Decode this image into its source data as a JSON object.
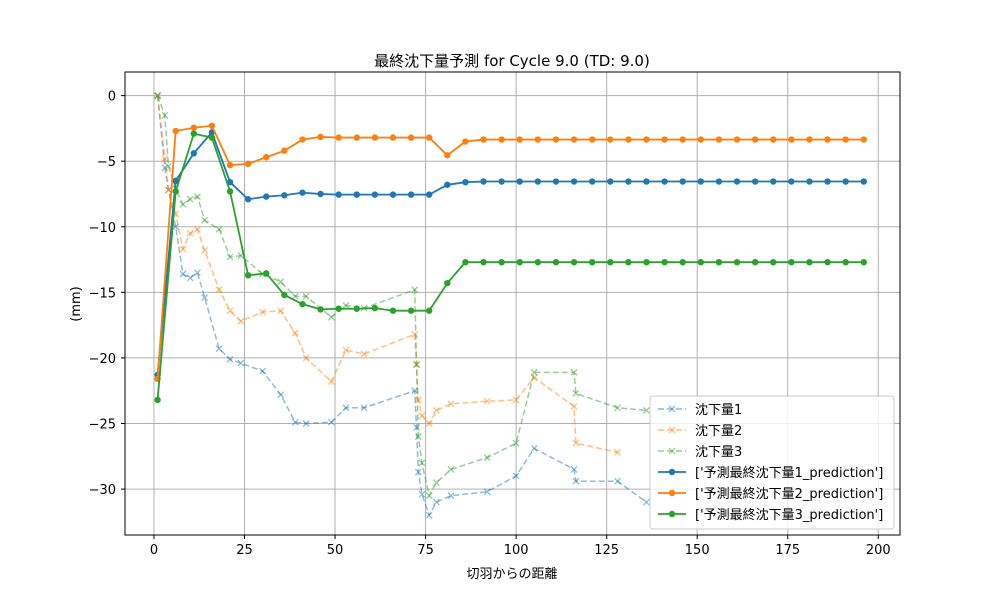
{
  "chart_data": {
    "type": "line",
    "title": "最終沈下量予測 for Cycle 9.0 (TD: 9.0)",
    "xlabel": "切羽からの距離",
    "ylabel": "(mm)",
    "xlim": [
      -8,
      206
    ],
    "ylim": [
      -33.5,
      1.8
    ],
    "xticks": [
      0,
      25,
      50,
      75,
      100,
      125,
      150,
      175,
      200
    ],
    "yticks": [
      0,
      -5,
      -10,
      -15,
      -20,
      -25,
      -30
    ],
    "grid": true,
    "legend_position": "lower-right",
    "series": [
      {
        "name": "沈下量1",
        "color": "#1f77b4",
        "style": "dashed",
        "marker": "x",
        "x": [
          1,
          3,
          4,
          6,
          8,
          10,
          12,
          14,
          18,
          21,
          24,
          30,
          35,
          39,
          42,
          49,
          53,
          58,
          72,
          72.5,
          73,
          74,
          76,
          78,
          82,
          92,
          100,
          105,
          116,
          116.5,
          128,
          136
        ],
        "y": [
          0,
          -5.5,
          -7.2,
          -10,
          -13.6,
          -13.9,
          -13.5,
          -15.4,
          -19.3,
          -20.1,
          -20.4,
          -21,
          -22.8,
          -24.9,
          -25,
          -24.9,
          -23.8,
          -23.8,
          -22.5,
          -25.3,
          -28.7,
          -30.4,
          -32,
          -31,
          -30.5,
          -30.2,
          -29,
          -26.9,
          -28.5,
          -29.4,
          -29.4,
          -31
        ]
      },
      {
        "name": "沈下量2",
        "color": "#ff7f0e",
        "style": "dashed",
        "marker": "x",
        "x": [
          1,
          3,
          4,
          6,
          8,
          10,
          12,
          14,
          18,
          21,
          24,
          30,
          35,
          39,
          42,
          49,
          53,
          58,
          72,
          72.5,
          73,
          74,
          76,
          78,
          82,
          92,
          100,
          105,
          116,
          116.5,
          128
        ],
        "y": [
          0,
          -4.8,
          -7.2,
          -9,
          -11.7,
          -10.5,
          -10.2,
          -11.8,
          -14.8,
          -16.4,
          -17.2,
          -16.5,
          -16.4,
          -18.1,
          -20,
          -21.8,
          -19.4,
          -19.7,
          -18.2,
          -20.5,
          -23.2,
          -24.4,
          -25,
          -24,
          -23.5,
          -23.3,
          -23.2,
          -21.5,
          -23.7,
          -26.5,
          -27.2
        ]
      },
      {
        "name": "沈下量3",
        "color": "#2ca02c",
        "style": "dashed",
        "marker": "x",
        "x": [
          1,
          3,
          4,
          6,
          8,
          10,
          12,
          14,
          18,
          21,
          24,
          30,
          35,
          39,
          42,
          49,
          53,
          58,
          72,
          72.5,
          73,
          74,
          76,
          78,
          82,
          92,
          100,
          105,
          116,
          116.5,
          128,
          136
        ],
        "y": [
          0,
          -1.5,
          -5.4,
          -7.1,
          -8.3,
          -7.9,
          -7.7,
          -9.5,
          -10.2,
          -12.3,
          -12.2,
          -13.6,
          -14.2,
          -15.3,
          -15.3,
          -16.9,
          -16,
          -16.2,
          -14.8,
          -20.5,
          -26,
          -28,
          -30.5,
          -29.5,
          -28.5,
          -27.6,
          -26.5,
          -21.1,
          -21.1,
          -22.7,
          -23.8,
          -24
        ]
      },
      {
        "name": "['予測最終沈下量1_prediction']",
        "color": "#1f77b4",
        "style": "solid",
        "marker": "o",
        "x": [
          1,
          6,
          11,
          16,
          21,
          26,
          31,
          36,
          41,
          46,
          51,
          56,
          61,
          66,
          71,
          76,
          81,
          86,
          91,
          96,
          101,
          106,
          111,
          116,
          121,
          126,
          131,
          136,
          141,
          146,
          151,
          156,
          161,
          166,
          171,
          176,
          181,
          186,
          191,
          196
        ],
        "y": [
          -21.3,
          -6.5,
          -4.4,
          -2.8,
          -6.6,
          -7.9,
          -7.7,
          -7.6,
          -7.4,
          -7.5,
          -7.55,
          -7.55,
          -7.55,
          -7.55,
          -7.55,
          -7.55,
          -6.8,
          -6.6,
          -6.55,
          -6.55,
          -6.55,
          -6.55,
          -6.55,
          -6.55,
          -6.55,
          -6.55,
          -6.55,
          -6.55,
          -6.55,
          -6.55,
          -6.55,
          -6.55,
          -6.55,
          -6.55,
          -6.55,
          -6.55,
          -6.55,
          -6.55,
          -6.55,
          -6.55
        ]
      },
      {
        "name": "['予測最終沈下量2_prediction']",
        "color": "#ff7f0e",
        "style": "solid",
        "marker": "o",
        "x": [
          1,
          6,
          11,
          16,
          21,
          26,
          31,
          36,
          41,
          46,
          51,
          56,
          61,
          66,
          71,
          76,
          81,
          86,
          91,
          96,
          101,
          106,
          111,
          116,
          121,
          126,
          131,
          136,
          141,
          146,
          151,
          156,
          161,
          166,
          171,
          176,
          181,
          186,
          191,
          196
        ],
        "y": [
          -21.6,
          -2.7,
          -2.45,
          -2.3,
          -5.3,
          -5.2,
          -4.7,
          -4.2,
          -3.35,
          -3.15,
          -3.2,
          -3.2,
          -3.2,
          -3.2,
          -3.2,
          -3.2,
          -4.55,
          -3.5,
          -3.35,
          -3.35,
          -3.35,
          -3.35,
          -3.35,
          -3.35,
          -3.35,
          -3.35,
          -3.35,
          -3.35,
          -3.35,
          -3.35,
          -3.35,
          -3.35,
          -3.35,
          -3.35,
          -3.35,
          -3.35,
          -3.35,
          -3.35,
          -3.35,
          -3.35
        ]
      },
      {
        "name": "['予測最終沈下量3_prediction']",
        "color": "#2ca02c",
        "style": "solid",
        "marker": "o",
        "x": [
          1,
          6,
          11,
          16,
          21,
          26,
          31,
          36,
          41,
          46,
          51,
          56,
          61,
          66,
          71,
          76,
          81,
          86,
          91,
          96,
          101,
          106,
          111,
          116,
          121,
          126,
          131,
          136,
          141,
          146,
          151,
          156,
          161,
          166,
          171,
          176,
          181,
          186,
          191,
          196
        ],
        "y": [
          -23.2,
          -7.3,
          -2.9,
          -3.2,
          -7.3,
          -13.7,
          -13.55,
          -15.2,
          -15.9,
          -16.3,
          -16.25,
          -16.25,
          -16.2,
          -16.4,
          -16.4,
          -16.4,
          -14.3,
          -12.7,
          -12.7,
          -12.7,
          -12.7,
          -12.7,
          -12.7,
          -12.7,
          -12.7,
          -12.7,
          -12.7,
          -12.7,
          -12.7,
          -12.7,
          -12.7,
          -12.7,
          -12.7,
          -12.7,
          -12.7,
          -12.7,
          -12.7,
          -12.7,
          -12.7,
          -12.7
        ]
      }
    ]
  }
}
